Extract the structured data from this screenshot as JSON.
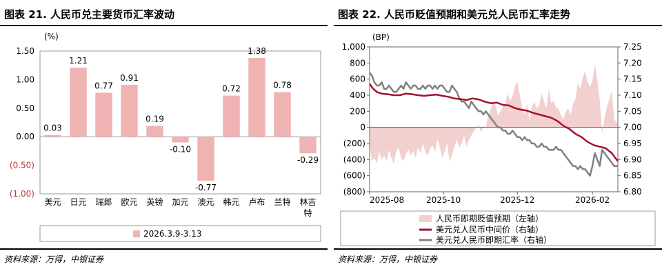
{
  "left": {
    "title": "图表 21. 人民币兑主要货币汇率波动",
    "source": "资料来源：万得，中银证券",
    "chart_data": {
      "type": "bar",
      "ylabel": "(%)",
      "ylim": [
        -1.0,
        1.5
      ],
      "yticks": [
        "1.50",
        "1.00",
        "0.50",
        "0.00",
        "(0.50)",
        "(1.00)"
      ],
      "ytick_values": [
        1.5,
        1.0,
        0.5,
        0.0,
        -0.5,
        -1.0
      ],
      "categories": [
        "美元",
        "日元",
        "瑞郎",
        "欧元",
        "英镑",
        "加元",
        "澳元",
        "韩元",
        "卢布",
        "兰特",
        "林吉特"
      ],
      "values": [
        0.03,
        1.21,
        0.77,
        0.91,
        0.19,
        -0.1,
        -0.77,
        0.72,
        1.38,
        0.78,
        -0.29
      ],
      "value_labels": [
        "0.03",
        "1.21",
        "0.77",
        "0.91",
        "0.19",
        "-0.10",
        "-0.77",
        "0.72",
        "1.38",
        "0.78",
        "-0.29"
      ],
      "legend": "2026.3.9-3.13",
      "bar_color": "#f0b3b3",
      "negative_tick_color": "#c0392b"
    }
  },
  "right": {
    "title": "图表 22. 人民币贬值预期和美元兑人民币汇率走势",
    "source": "资料来源：万得，中银证券",
    "chart_data": {
      "type": "line",
      "ylabel_left": "(BP)",
      "ylim_left": [
        -800,
        1000
      ],
      "yticks_left": [
        "1,000",
        "800",
        "600",
        "400",
        "200",
        "0",
        "(200)",
        "(400)",
        "(600)",
        "(800)"
      ],
      "ytick_values_left": [
        1000,
        800,
        600,
        400,
        200,
        0,
        -200,
        -400,
        -600,
        -800
      ],
      "ylim_right": [
        6.8,
        7.25
      ],
      "yticks_right": [
        "7.25",
        "7.20",
        "7.15",
        "7.10",
        "7.05",
        "7.00",
        "6.95",
        "6.90",
        "6.85",
        "6.80"
      ],
      "ytick_values_right": [
        7.25,
        7.2,
        7.15,
        7.1,
        7.05,
        7.0,
        6.95,
        6.9,
        6.85,
        6.8
      ],
      "xticks": [
        "2025-08",
        "2025-10",
        "2025-12",
        "2026-02"
      ],
      "xtick_values": [
        0,
        61,
        122,
        184
      ],
      "x_max": 205,
      "legend": [
        "人民币即期贬值预期（左轴）",
        "美元兑人民币中间价（右轴）",
        "美元兑人民币即期汇率（右轴）"
      ],
      "colors": {
        "area": "#f2d0d0",
        "central": "#a50f2d",
        "spot": "#808080"
      },
      "series": [
        {
          "name": "人民币即期贬值预期（左轴）",
          "axis": "left",
          "x": [
            0,
            2,
            4,
            6,
            8,
            10,
            12,
            14,
            16,
            18,
            20,
            22,
            24,
            26,
            28,
            30,
            32,
            34,
            36,
            38,
            40,
            42,
            44,
            46,
            48,
            50,
            52,
            54,
            56,
            58,
            60,
            62,
            64,
            66,
            68,
            70,
            72,
            74,
            76,
            78,
            80,
            82,
            84,
            86,
            88,
            90,
            92,
            94,
            96,
            98,
            100,
            102,
            104,
            106,
            108,
            110,
            112,
            114,
            116,
            118,
            120,
            122,
            124,
            126,
            128,
            130,
            132,
            134,
            136,
            138,
            140,
            142,
            144,
            146,
            148,
            150,
            152,
            154,
            156,
            158,
            160,
            162,
            164,
            166,
            168,
            170,
            172,
            174,
            176,
            178,
            180,
            182,
            184,
            186,
            188,
            190,
            192,
            194,
            196,
            198,
            200,
            202,
            205
          ],
          "values": [
            -200,
            -420,
            -380,
            -450,
            -300,
            -400,
            -350,
            -420,
            -280,
            -380,
            -450,
            -300,
            -250,
            -380,
            -420,
            -330,
            -280,
            -350,
            -300,
            -380,
            -250,
            -320,
            -200,
            -300,
            -350,
            -260,
            -220,
            -300,
            -150,
            -250,
            -380,
            -300,
            -200,
            -420,
            -350,
            -250,
            -150,
            -250,
            -200,
            -100,
            -250,
            -150,
            -100,
            -50,
            0,
            30,
            -60,
            20,
            0,
            150,
            220,
            320,
            280,
            150,
            200,
            260,
            300,
            420,
            330,
            380,
            520,
            560,
            400,
            250,
            160,
            300,
            80,
            260,
            320,
            230,
            280,
            420,
            330,
            240,
            480,
            300,
            330,
            250,
            230,
            150,
            100,
            200,
            230,
            160,
            300,
            350,
            550,
            480,
            620,
            700,
            560,
            500,
            580,
            780,
            600,
            350,
            -80,
            120,
            260,
            350,
            450,
            100,
            40
          ]
        },
        {
          "name": "美元兑人民币中间价（右轴）",
          "axis": "right",
          "x": [
            0,
            3,
            6,
            10,
            15,
            20,
            25,
            30,
            35,
            40,
            45,
            50,
            55,
            60,
            65,
            70,
            75,
            80,
            85,
            90,
            95,
            100,
            105,
            110,
            115,
            120,
            125,
            130,
            135,
            140,
            145,
            150,
            155,
            160,
            165,
            170,
            175,
            180,
            185,
            190,
            195,
            200,
            202,
            205
          ],
          "values": [
            7.135,
            7.12,
            7.11,
            7.105,
            7.103,
            7.1,
            7.1,
            7.105,
            7.103,
            7.1,
            7.098,
            7.1,
            7.102,
            7.098,
            7.095,
            7.09,
            7.088,
            7.085,
            7.09,
            7.087,
            7.08,
            7.075,
            7.077,
            7.07,
            7.068,
            7.06,
            7.055,
            7.052,
            7.045,
            7.04,
            7.035,
            7.03,
            7.02,
            7.005,
            6.995,
            6.98,
            6.97,
            6.955,
            6.945,
            6.94,
            6.935,
            6.92,
            6.91,
            6.895
          ]
        },
        {
          "name": "美元兑人民币即期汇率（右轴）",
          "axis": "right",
          "x": [
            0,
            2,
            4,
            6,
            8,
            10,
            12,
            14,
            16,
            18,
            20,
            22,
            24,
            26,
            28,
            30,
            32,
            34,
            36,
            38,
            40,
            42,
            44,
            46,
            48,
            50,
            52,
            54,
            56,
            58,
            60,
            62,
            64,
            66,
            68,
            70,
            72,
            74,
            76,
            78,
            80,
            82,
            84,
            86,
            88,
            90,
            92,
            94,
            96,
            98,
            100,
            102,
            104,
            106,
            108,
            110,
            112,
            114,
            116,
            118,
            120,
            122,
            124,
            126,
            128,
            130,
            132,
            134,
            136,
            138,
            140,
            142,
            144,
            146,
            148,
            150,
            152,
            154,
            156,
            158,
            160,
            162,
            164,
            166,
            168,
            170,
            172,
            174,
            176,
            178,
            180,
            182,
            184,
            186,
            188,
            190,
            192,
            194,
            196,
            198,
            200,
            202,
            205
          ],
          "values": [
            7.17,
            7.16,
            7.14,
            7.13,
            7.13,
            7.14,
            7.12,
            7.12,
            7.13,
            7.12,
            7.11,
            7.11,
            7.12,
            7.13,
            7.12,
            7.14,
            7.13,
            7.12,
            7.13,
            7.13,
            7.12,
            7.12,
            7.13,
            7.12,
            7.13,
            7.13,
            7.12,
            7.13,
            7.12,
            7.13,
            7.13,
            7.12,
            7.11,
            7.11,
            7.13,
            7.12,
            7.11,
            7.09,
            7.08,
            7.08,
            7.07,
            7.06,
            7.08,
            7.07,
            7.06,
            7.05,
            7.05,
            7.04,
            7.05,
            7.04,
            7.03,
            7.02,
            7.01,
            7.0,
            7.0,
            6.99,
            6.99,
            6.98,
            6.98,
            6.99,
            6.98,
            6.97,
            6.97,
            6.96,
            6.97,
            6.96,
            6.96,
            6.95,
            6.95,
            6.94,
            6.94,
            6.95,
            6.94,
            6.94,
            6.93,
            6.93,
            6.93,
            6.94,
            6.93,
            6.93,
            6.92,
            6.91,
            6.9,
            6.89,
            6.88,
            6.88,
            6.87,
            6.88,
            6.87,
            6.87,
            6.86,
            6.85,
            6.88,
            6.92,
            6.9,
            6.88,
            6.93,
            6.92,
            6.91,
            6.9,
            6.89,
            6.88,
            6.88
          ]
        }
      ]
    }
  }
}
